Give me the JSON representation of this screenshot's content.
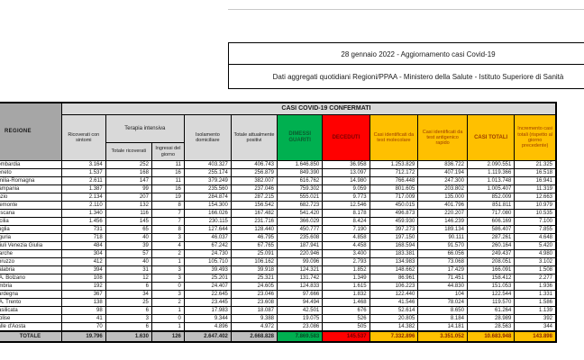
{
  "titles": {
    "line1": "28 gennaio 2022 - Aggiornamento casi Covid-19",
    "line2": "Dati aggregati quotidiani Regioni/PPAA - Ministero della Salute - Istituto Superiore di Sanità"
  },
  "table": {
    "corner_header": "REGIONE",
    "banner": "CASI COVID-19 CONFERMATI",
    "group_terapia": "Terapia intensiva",
    "headers": {
      "ricoverati": "Ricoverati con sintomi",
      "ti_totale": "Totale ricoverati",
      "ti_ingressi": "Ingressi del giorno",
      "isolamento": "Isolamento domiciliare",
      "positivi": "Totale attualmente positivi",
      "guariti": "DIMESSI GUARITI",
      "deceduti": "DECEDUTI",
      "molecolare": "Casi identificati da test molecolare",
      "antigenico": "Casi identificati da test antigenico rapido",
      "totali": "CASI TOTALI",
      "incremento": "Incremento casi totali (rispetto al giorno precedente)"
    },
    "rows": [
      {
        "regione": "Lombardia",
        "values": [
          "3.164",
          "252",
          "11",
          "403.327",
          "406.743",
          "1.646.850",
          "36.958",
          "1.253.829",
          "836.722",
          "2.090.551",
          "21.325"
        ]
      },
      {
        "regione": "Veneto",
        "values": [
          "1.537",
          "168",
          "16",
          "255.174",
          "256.879",
          "849.390",
          "13.097",
          "712.172",
          "407.194",
          "1.119.366",
          "16.518"
        ]
      },
      {
        "regione": "Emilia-Romagna",
        "values": [
          "2.611",
          "147",
          "11",
          "379.249",
          "382.007",
          "616.762",
          "14.980",
          "766.448",
          "247.300",
          "1.013.748",
          "16.941"
        ]
      },
      {
        "regione": "Campania",
        "values": [
          "1.387",
          "99",
          "16",
          "235.560",
          "237.046",
          "759.302",
          "9.059",
          "801.605",
          "203.802",
          "1.005.407",
          "11.319"
        ]
      },
      {
        "regione": "Lazio",
        "values": [
          "2.134",
          "207",
          "19",
          "284.874",
          "287.215",
          "555.021",
          "9.773",
          "717.009",
          "135.000",
          "852.009",
          "12.663"
        ]
      },
      {
        "regione": "Piemonte",
        "values": [
          "2.110",
          "132",
          "8",
          "154.300",
          "156.542",
          "682.723",
          "12.546",
          "450.015",
          "401.796",
          "851.811",
          "10.979"
        ]
      },
      {
        "regione": "Toscana",
        "values": [
          "1.340",
          "116",
          "7",
          "166.026",
          "167.482",
          "541.420",
          "8.178",
          "496.873",
          "220.207",
          "717.080",
          "10.535"
        ]
      },
      {
        "regione": "Sicilia",
        "values": [
          "1.456",
          "145",
          "7",
          "230.115",
          "231.716",
          "366.029",
          "8.424",
          "459.930",
          "146.239",
          "606.169",
          "7.100"
        ]
      },
      {
        "regione": "Puglia",
        "values": [
          "731",
          "65",
          "8",
          "127.644",
          "128.440",
          "450.777",
          "7.190",
          "397.273",
          "189.134",
          "586.407",
          "7.855"
        ]
      },
      {
        "regione": "Liguria",
        "values": [
          "718",
          "40",
          "3",
          "46.037",
          "46.795",
          "235.608",
          "4.858",
          "197.150",
          "90.111",
          "287.261",
          "4.648"
        ]
      },
      {
        "regione": "Friuli Venezia Giulia",
        "values": [
          "484",
          "39",
          "4",
          "67.242",
          "67.765",
          "187.941",
          "4.458",
          "168.594",
          "91.570",
          "260.164",
          "5.420"
        ]
      },
      {
        "regione": "Marche",
        "values": [
          "304",
          "57",
          "2",
          "24.730",
          "25.091",
          "220.946",
          "3.400",
          "183.381",
          "66.056",
          "249.437",
          "4.980"
        ]
      },
      {
        "regione": "Abruzzo",
        "values": [
          "412",
          "40",
          "1",
          "105.710",
          "106.162",
          "99.096",
          "2.793",
          "134.983",
          "73.068",
          "208.051",
          "3.102"
        ]
      },
      {
        "regione": "Calabria",
        "values": [
          "394",
          "31",
          "3",
          "39.493",
          "39.918",
          "124.321",
          "1.852",
          "148.662",
          "17.429",
          "166.091",
          "1.508"
        ]
      },
      {
        "regione": "P.A. Bolzano",
        "values": [
          "108",
          "12",
          "3",
          "25.201",
          "25.321",
          "131.742",
          "1.349",
          "86.961",
          "71.451",
          "158.412",
          "2.277"
        ]
      },
      {
        "regione": "Umbria",
        "values": [
          "192",
          "6",
          "0",
          "24.407",
          "24.605",
          "124.833",
          "1.615",
          "106.223",
          "44.830",
          "151.053",
          "1.936"
        ]
      },
      {
        "regione": "Sardegna",
        "values": [
          "367",
          "34",
          "3",
          "22.645",
          "23.046",
          "97.666",
          "1.832",
          "122.440",
          "104",
          "122.544",
          "1.331"
        ]
      },
      {
        "regione": "P.A. Trento",
        "values": [
          "138",
          "25",
          "2",
          "23.445",
          "23.608",
          "94.494",
          "1.468",
          "41.546",
          "78.024",
          "119.570",
          "1.586"
        ]
      },
      {
        "regione": "Basilicata",
        "values": [
          "98",
          "6",
          "1",
          "17.983",
          "18.087",
          "42.501",
          "676",
          "52.614",
          "8.650",
          "61.264",
          "1.139"
        ]
      },
      {
        "regione": "Molise",
        "values": [
          "41",
          "3",
          "0",
          "9.344",
          "9.388",
          "19.075",
          "526",
          "20.805",
          "8.184",
          "28.989",
          "392"
        ]
      },
      {
        "regione": "Valle d'Aosta",
        "values": [
          "70",
          "6",
          "1",
          "4.896",
          "4.972",
          "23.086",
          "505",
          "14.382",
          "14.181",
          "28.563",
          "344"
        ]
      }
    ],
    "totale": {
      "regione": "TOTALE",
      "values": [
        "19.796",
        "1.630",
        "126",
        "2.647.402",
        "2.668.828",
        "7.869.583",
        "145.537",
        "7.332.896",
        "3.351.052",
        "10.683.948",
        "143.898"
      ]
    }
  },
  "colors": {
    "green": "#00b050",
    "red": "#ff0000",
    "orange": "#ffc000",
    "header_gray": "#d9d9d9",
    "regione_gray": "#a6a6a6",
    "totale_gray": "#bfbfbf"
  }
}
